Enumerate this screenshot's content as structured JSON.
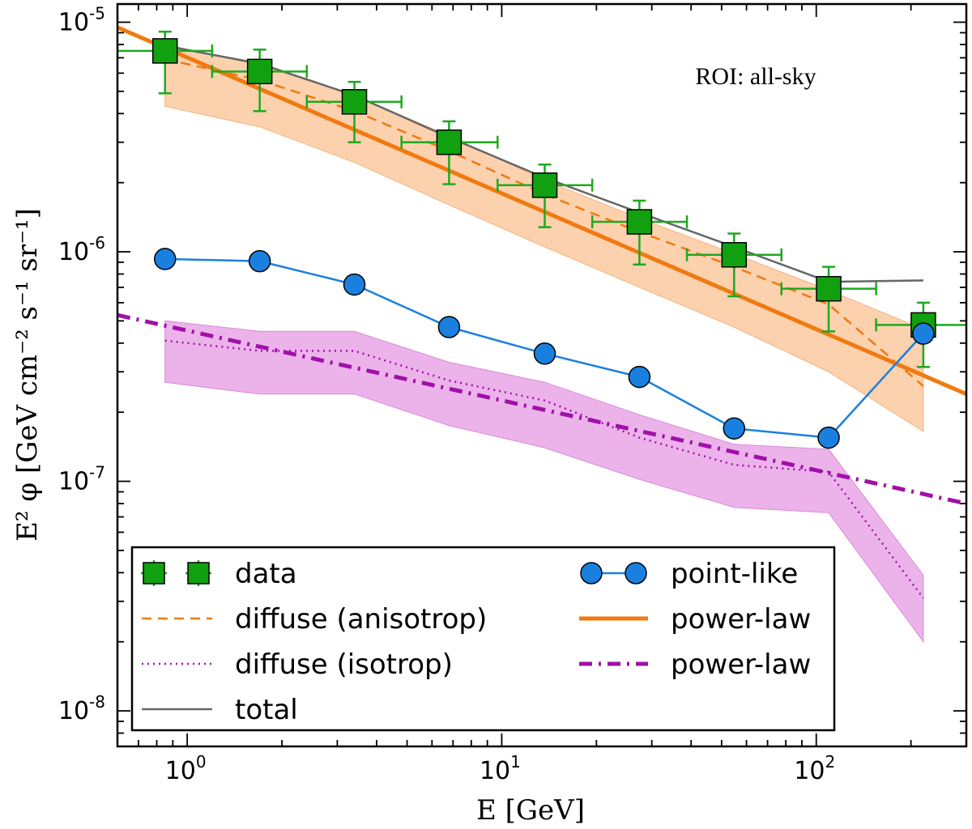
{
  "chart_data": {
    "type": "line",
    "title": "",
    "xlabel": "E [GeV]",
    "ylabel": "E² φ [GeV cm⁻² s⁻¹ sr⁻¹]",
    "xscale": "log",
    "yscale": "log",
    "xlim": [
      0.6,
      300
    ],
    "ylim": [
      7e-09,
      1.2e-05
    ],
    "x_ticks": [
      {
        "value": 1,
        "base": "10",
        "exp": "0"
      },
      {
        "value": 10,
        "base": "10",
        "exp": "1"
      },
      {
        "value": 100,
        "base": "10",
        "exp": "2"
      }
    ],
    "y_ticks": [
      {
        "value": 1e-08,
        "base": "10",
        "exp": "-8"
      },
      {
        "value": 1e-07,
        "base": "10",
        "exp": "-7"
      },
      {
        "value": 1e-06,
        "base": "10",
        "exp": "-6"
      },
      {
        "value": 1e-05,
        "base": "10",
        "exp": "-5"
      }
    ],
    "annotation": "ROI: all-sky",
    "legend_position": "bottom-left",
    "colors": {
      "data": "#10a010",
      "data_err": "#1fa81f",
      "point_like": "#1a80e0",
      "powerlaw_orange": "#f07a10",
      "band_orange": "#fbc9a0",
      "powerlaw_purple": "#a010a8",
      "band_purple": "#e9a6e6",
      "total": "#666666"
    },
    "series": [
      {
        "name": "data",
        "kind": "errorbar",
        "x": [
          0.85,
          1.7,
          3.4,
          6.8,
          13.7,
          27.4,
          54.8,
          109.5,
          219
        ],
        "y": [
          7.5e-06,
          6.1e-06,
          4.5e-06,
          3e-06,
          1.95e-06,
          1.35e-06,
          9.7e-07,
          6.9e-07,
          4.8e-07
        ],
        "x_low": [
          0.6,
          1.2,
          2.4,
          4.8,
          9.7,
          19.4,
          38.8,
          77.5,
          155
        ],
        "x_high": [
          1.2,
          2.4,
          4.8,
          9.7,
          19.4,
          38.8,
          77.5,
          155,
          310
        ],
        "y_low": [
          4.9e-06,
          4.1e-06,
          3e-06,
          1.97e-06,
          1.28e-06,
          8.8e-07,
          6.4e-07,
          4.5e-07,
          3.15e-07
        ],
        "y_high": [
          9.1e-06,
          7.6e-06,
          5.5e-06,
          3.7e-06,
          2.4e-06,
          1.67e-06,
          1.2e-06,
          8.6e-07,
          6e-07
        ]
      },
      {
        "name": "point-like",
        "kind": "line-marker",
        "x": [
          0.85,
          1.7,
          3.4,
          6.8,
          13.7,
          27.4,
          54.8,
          109.5,
          219
        ],
        "y": [
          9.3e-07,
          9.1e-07,
          7.2e-07,
          4.7e-07,
          3.6e-07,
          2.85e-07,
          1.7e-07,
          1.55e-07,
          4.4e-07
        ]
      },
      {
        "name": "diffuse (anisotrop)",
        "kind": "dashed",
        "x": [
          0.85,
          1.7,
          3.4,
          6.8,
          13.7,
          27.4,
          54.8,
          109.5,
          219
        ],
        "y": [
          6.9e-06,
          5.6e-06,
          4.1e-06,
          2.75e-06,
          1.78e-06,
          1.22e-06,
          8.6e-07,
          5.9e-07,
          2.6e-07
        ]
      },
      {
        "name": "diffuse (isotrop)",
        "kind": "dotted",
        "x": [
          0.85,
          1.7,
          3.4,
          6.8,
          13.7,
          27.4,
          54.8,
          109.5,
          219
        ],
        "y": [
          4.1e-07,
          3.7e-07,
          3.7e-07,
          2.75e-07,
          2.25e-07,
          1.55e-07,
          1.18e-07,
          1.1e-07,
          3.1e-08
        ]
      },
      {
        "name": "total",
        "kind": "solid-gray",
        "x": [
          0.85,
          1.7,
          3.4,
          6.8,
          13.7,
          27.4,
          54.8,
          109.5,
          219
        ],
        "y": [
          7.9e-06,
          6.6e-06,
          4.8e-06,
          3.15e-06,
          2.1e-06,
          1.48e-06,
          1.05e-06,
          7.4e-07,
          7.5e-07
        ]
      },
      {
        "name": "power-law",
        "kind": "powerlaw-orange",
        "x": [
          0.6,
          300
        ],
        "y": [
          9.5e-06,
          2.4e-07
        ]
      },
      {
        "name": "power-law",
        "kind": "powerlaw-purple",
        "x": [
          0.6,
          300
        ],
        "y": [
          5.3e-07,
          8e-08
        ]
      }
    ],
    "bands": [
      {
        "name": "anisotrop-band",
        "x": [
          0.85,
          1.7,
          3.4,
          6.8,
          13.7,
          27.4,
          54.8,
          109.5,
          219
        ],
        "lower": [
          4.3e-06,
          3.5e-06,
          2.45e-06,
          1.6e-06,
          1.05e-06,
          7e-07,
          4.7e-07,
          3e-07,
          1.65e-07
        ],
        "upper": [
          8e-06,
          6.5e-06,
          4.8e-06,
          3.2e-06,
          2.05e-06,
          1.4e-06,
          9.8e-07,
          6.8e-07,
          4.6e-07
        ]
      },
      {
        "name": "isotrop-band",
        "x": [
          0.85,
          1.7,
          3.4,
          6.8,
          13.7,
          27.4,
          54.8,
          109.5,
          219
        ],
        "lower": [
          2.7e-07,
          2.4e-07,
          2.4e-07,
          1.75e-07,
          1.4e-07,
          1.02e-07,
          7.7e-08,
          7.3e-08,
          2e-08
        ],
        "upper": [
          5e-07,
          4.5e-07,
          4.5e-07,
          3.3e-07,
          2.7e-07,
          1.95e-07,
          1.45e-07,
          1.38e-07,
          3.9e-08
        ]
      }
    ],
    "legend": [
      {
        "label": "data",
        "kind": "errorbar"
      },
      {
        "label": "point-like",
        "kind": "line-marker"
      },
      {
        "label": "diffuse (anisotrop)",
        "kind": "dashed"
      },
      {
        "label": "power-law",
        "kind": "powerlaw-orange"
      },
      {
        "label": "diffuse (isotrop)",
        "kind": "dotted"
      },
      {
        "label": "power-law",
        "kind": "powerlaw-purple"
      },
      {
        "label": "total",
        "kind": "solid-gray"
      }
    ]
  }
}
